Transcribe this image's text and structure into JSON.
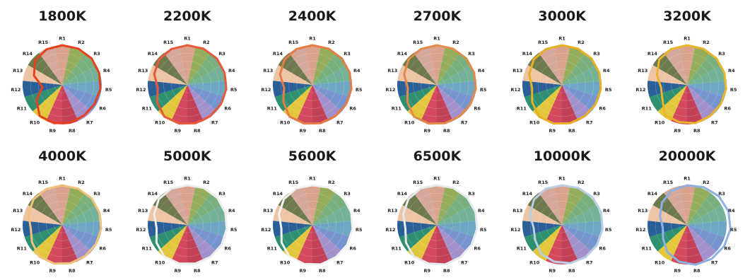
{
  "chart_data": [
    {
      "type": "polar",
      "title": "1800K",
      "categories": [
        "R1",
        "R2",
        "R3",
        "R4",
        "R5",
        "R6",
        "R7",
        "R8",
        "R9",
        "R10",
        "R11",
        "R12",
        "R13",
        "R14",
        "R15"
      ],
      "values": [
        1.0,
        1.0,
        1.0,
        0.98,
        0.97,
        0.95,
        0.95,
        0.98,
        0.99,
        0.97,
        0.75,
        0.5,
        0.75,
        0.92,
        0.98
      ],
      "outline_color": "#e8401e"
    },
    {
      "type": "polar",
      "title": "2200K",
      "categories": [
        "R1",
        "R2",
        "R3",
        "R4",
        "R5",
        "R6",
        "R7",
        "R8",
        "R9",
        "R10",
        "R11",
        "R12",
        "R13",
        "R14",
        "R15"
      ],
      "values": [
        1.0,
        1.0,
        1.0,
        0.99,
        0.99,
        0.98,
        0.98,
        0.99,
        1.0,
        0.99,
        0.88,
        0.75,
        0.88,
        0.96,
        0.99
      ],
      "outline_color": "#e8583a"
    },
    {
      "type": "polar",
      "title": "2400K",
      "categories": [
        "R1",
        "R2",
        "R3",
        "R4",
        "R5",
        "R6",
        "R7",
        "R8",
        "R9",
        "R10",
        "R11",
        "R12",
        "R13",
        "R14",
        "R15"
      ],
      "values": [
        1.0,
        1.0,
        1.0,
        0.99,
        0.99,
        0.98,
        0.98,
        0.99,
        1.0,
        0.99,
        0.85,
        0.72,
        0.86,
        0.95,
        0.99
      ],
      "outline_color": "#e57c43"
    },
    {
      "type": "polar",
      "title": "2700K",
      "categories": [
        "R1",
        "R2",
        "R3",
        "R4",
        "R5",
        "R6",
        "R7",
        "R8",
        "R9",
        "R10",
        "R11",
        "R12",
        "R13",
        "R14",
        "R15"
      ],
      "values": [
        1.0,
        1.0,
        1.0,
        0.99,
        0.99,
        0.98,
        0.98,
        0.99,
        1.0,
        0.99,
        0.86,
        0.74,
        0.87,
        0.96,
        0.99
      ],
      "outline_color": "#e28a47"
    },
    {
      "type": "polar",
      "title": "3000K",
      "categories": [
        "R1",
        "R2",
        "R3",
        "R4",
        "R5",
        "R6",
        "R7",
        "R8",
        "R9",
        "R10",
        "R11",
        "R12",
        "R13",
        "R14",
        "R15"
      ],
      "values": [
        1.0,
        1.0,
        1.0,
        0.99,
        0.99,
        0.98,
        0.98,
        0.99,
        1.0,
        0.99,
        0.87,
        0.76,
        0.87,
        0.96,
        0.99
      ],
      "outline_color": "#e8b022"
    },
    {
      "type": "polar",
      "title": "3200K",
      "categories": [
        "R1",
        "R2",
        "R3",
        "R4",
        "R5",
        "R6",
        "R7",
        "R8",
        "R9",
        "R10",
        "R11",
        "R12",
        "R13",
        "R14",
        "R15"
      ],
      "values": [
        1.0,
        1.0,
        1.0,
        0.99,
        0.99,
        0.98,
        0.98,
        0.99,
        0.96,
        0.95,
        0.72,
        0.66,
        0.8,
        0.95,
        0.99
      ],
      "outline_color": "#eab52a"
    },
    {
      "type": "polar",
      "title": "4000K",
      "categories": [
        "R1",
        "R2",
        "R3",
        "R4",
        "R5",
        "R6",
        "R7",
        "R8",
        "R9",
        "R10",
        "R11",
        "R12",
        "R13",
        "R14",
        "R15"
      ],
      "values": [
        1.0,
        1.0,
        1.0,
        0.99,
        0.99,
        0.98,
        0.98,
        0.99,
        1.0,
        0.99,
        0.88,
        0.8,
        0.9,
        0.97,
        0.99
      ],
      "outline_color": "#f0c27c"
    },
    {
      "type": "polar",
      "title": "5000K",
      "categories": [
        "R1",
        "R2",
        "R3",
        "R4",
        "R5",
        "R6",
        "R7",
        "R8",
        "R9",
        "R10",
        "R11",
        "R12",
        "R13",
        "R14",
        "R15"
      ],
      "values": [
        1.0,
        1.02,
        1.02,
        1.01,
        1.0,
        1.0,
        1.0,
        1.0,
        1.0,
        0.99,
        0.9,
        0.78,
        0.88,
        0.97,
        1.0
      ],
      "outline_color": "#ededed"
    },
    {
      "type": "polar",
      "title": "5600K",
      "categories": [
        "R1",
        "R2",
        "R3",
        "R4",
        "R5",
        "R6",
        "R7",
        "R8",
        "R9",
        "R10",
        "R11",
        "R12",
        "R13",
        "R14",
        "R15"
      ],
      "values": [
        1.0,
        1.03,
        1.04,
        1.03,
        1.02,
        1.01,
        1.01,
        1.02,
        1.01,
        0.99,
        0.9,
        0.79,
        0.89,
        0.97,
        1.01
      ],
      "outline_color": "#f2f2f2"
    },
    {
      "type": "polar",
      "title": "6500K",
      "categories": [
        "R1",
        "R2",
        "R3",
        "R4",
        "R5",
        "R6",
        "R7",
        "R8",
        "R9",
        "R10",
        "R11",
        "R12",
        "R13",
        "R14",
        "R15"
      ],
      "values": [
        1.0,
        1.02,
        1.03,
        1.03,
        1.02,
        1.01,
        1.01,
        1.02,
        1.0,
        0.99,
        0.9,
        0.8,
        0.89,
        0.97,
        1.01
      ],
      "outline_color": "#e6e9ee"
    },
    {
      "type": "polar",
      "title": "10000K",
      "categories": [
        "R1",
        "R2",
        "R3",
        "R4",
        "R5",
        "R6",
        "R7",
        "R8",
        "R9",
        "R10",
        "R11",
        "R12",
        "R13",
        "R14",
        "R15"
      ],
      "values": [
        1.0,
        1.02,
        1.04,
        1.04,
        1.03,
        1.02,
        1.01,
        0.99,
        0.95,
        0.9,
        0.78,
        0.72,
        0.85,
        0.95,
        1.0
      ],
      "outline_color": "#b9cde4"
    },
    {
      "type": "polar",
      "title": "20000K",
      "categories": [
        "R1",
        "R2",
        "R3",
        "R4",
        "R5",
        "R6",
        "R7",
        "R8",
        "R9",
        "R10",
        "R11",
        "R12",
        "R13",
        "R14",
        "R15"
      ],
      "values": [
        1.0,
        1.04,
        1.08,
        1.1,
        1.1,
        1.08,
        1.06,
        1.03,
        0.95,
        0.85,
        0.7,
        0.62,
        0.72,
        0.85,
        0.95
      ],
      "outline_color": "#8fb0e3"
    }
  ],
  "sector_colors": [
    "#d9a38d",
    "#94ae5c",
    "#7ab07e",
    "#74b398",
    "#6ea6c4",
    "#7694cd",
    "#a391cc",
    "#c24159",
    "#d34a5f",
    "#e2c73c",
    "#2e9070",
    "#2a5f98",
    "#edc4a4",
    "#6d7a4e",
    "#d6a79b"
  ]
}
